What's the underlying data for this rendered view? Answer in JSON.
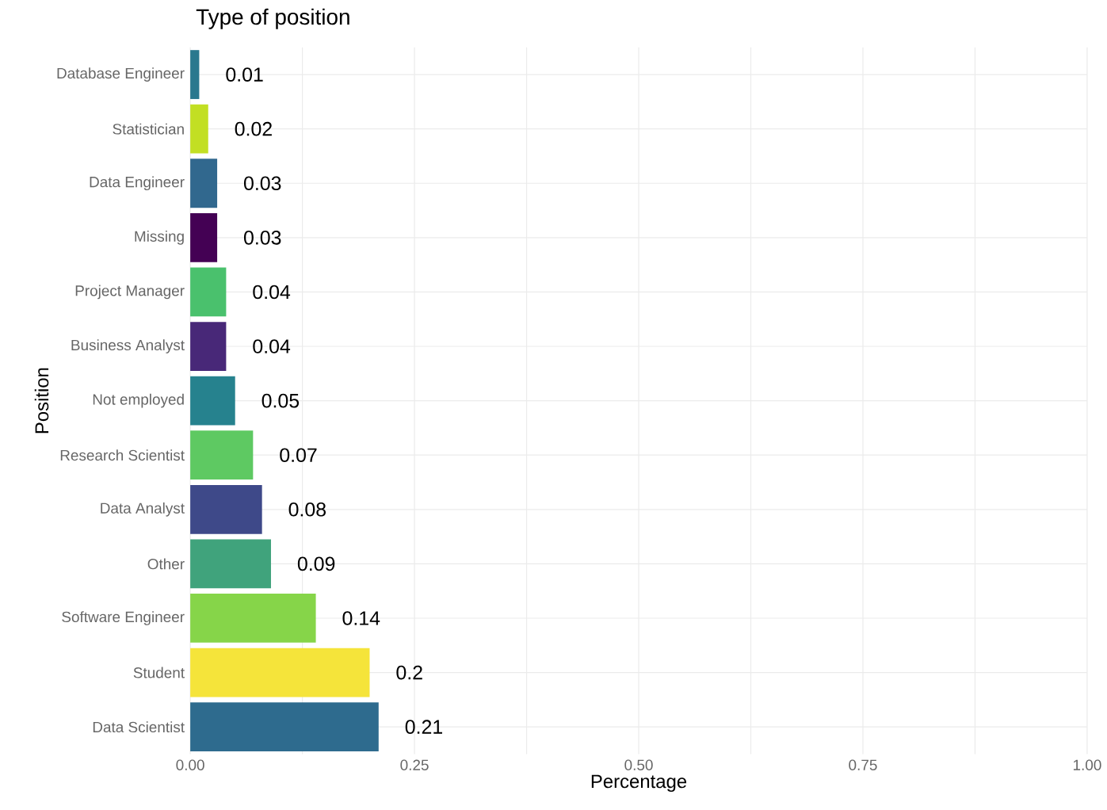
{
  "chart_data": {
    "type": "bar",
    "orientation": "horizontal",
    "title": "Type of position",
    "xlabel": "Percentage",
    "ylabel": "Position",
    "categories": [
      "Database Engineer",
      "Statistician",
      "Data Engineer",
      "Missing",
      "Project Manager",
      "Business Analyst",
      "Not employed",
      "Research Scientist",
      "Data Analyst",
      "Other",
      "Software Engineer",
      "Student",
      "Data Scientist"
    ],
    "values": [
      0.01,
      0.02,
      0.03,
      0.03,
      0.04,
      0.04,
      0.05,
      0.07,
      0.08,
      0.09,
      0.14,
      0.2,
      0.21
    ],
    "colors": [
      "#2a788e",
      "#c2df23",
      "#31688e",
      "#440154",
      "#4ac16d",
      "#482878",
      "#26828e",
      "#5ec962",
      "#3e4989",
      "#40a37c",
      "#86d549",
      "#f5e43a",
      "#2e6b8e"
    ],
    "data_labels": true,
    "xlim": [
      0,
      1
    ],
    "xticks": [
      {
        "value": 0,
        "label": "0.00"
      },
      {
        "value": 0.125,
        "label": null
      },
      {
        "value": 0.25,
        "label": "0.25"
      },
      {
        "value": 0.375,
        "label": null
      },
      {
        "value": 0.5,
        "label": "0.50"
      },
      {
        "value": 0.625,
        "label": null
      },
      {
        "value": 0.75,
        "label": "0.75"
      },
      {
        "value": 0.875,
        "label": null
      },
      {
        "value": 1,
        "label": "1.00"
      }
    ],
    "grid": true
  }
}
